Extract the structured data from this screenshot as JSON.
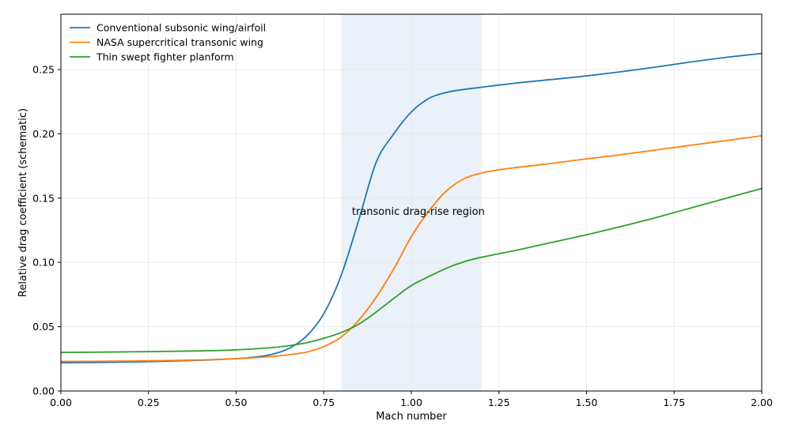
{
  "chart_data": {
    "type": "line",
    "title": "",
    "xlabel": "Mach number",
    "ylabel": "Relative drag coefficient (schematic)",
    "xlim": [
      0.0,
      2.0
    ],
    "ylim": [
      0.0,
      0.293
    ],
    "xticks": [
      0.0,
      0.25,
      0.5,
      0.75,
      1.0,
      1.25,
      1.5,
      1.75,
      2.0
    ],
    "xtick_labels": [
      "0.00",
      "0.25",
      "0.50",
      "0.75",
      "1.00",
      "1.25",
      "1.50",
      "1.75",
      "2.00"
    ],
    "yticks": [
      0.0,
      0.05,
      0.1,
      0.15,
      0.2,
      0.25
    ],
    "ytick_labels": [
      "0.00",
      "0.05",
      "0.10",
      "0.15",
      "0.20",
      "0.25"
    ],
    "grid": true,
    "legend_position": "top-left",
    "shaded_region": {
      "x_start": 0.8,
      "x_end": 1.2,
      "color": "#dce7f3"
    },
    "annotation": {
      "text": "transonic drag-rise region",
      "x": 1.02,
      "y": 0.14
    },
    "series": [
      {
        "name": "Conventional subsonic wing/airfoil",
        "color": "#1f77b4",
        "x": [
          0.0,
          0.1,
          0.2,
          0.3,
          0.4,
          0.5,
          0.55,
          0.6,
          0.65,
          0.7,
          0.75,
          0.8,
          0.85,
          0.9,
          0.95,
          1.0,
          1.05,
          1.1,
          1.15,
          1.2,
          1.3,
          1.4,
          1.5,
          1.6,
          1.7,
          1.8,
          1.9,
          2.0
        ],
        "y": [
          0.022,
          0.0222,
          0.0226,
          0.0232,
          0.024,
          0.0252,
          0.0263,
          0.0284,
          0.033,
          0.0425,
          0.06,
          0.09,
          0.133,
          0.178,
          0.2,
          0.217,
          0.2275,
          0.2322,
          0.2345,
          0.2362,
          0.2395,
          0.2422,
          0.245,
          0.2483,
          0.252,
          0.256,
          0.2595,
          0.2625
        ]
      },
      {
        "name": "NASA supercritical transonic wing",
        "color": "#ff7f0e",
        "x": [
          0.0,
          0.2,
          0.4,
          0.5,
          0.6,
          0.65,
          0.7,
          0.75,
          0.8,
          0.85,
          0.9,
          0.95,
          1.0,
          1.05,
          1.1,
          1.15,
          1.2,
          1.25,
          1.3,
          1.4,
          1.5,
          1.6,
          1.7,
          1.8,
          1.9,
          2.0
        ],
        "y": [
          0.023,
          0.0233,
          0.0242,
          0.0252,
          0.0268,
          0.0282,
          0.0302,
          0.0345,
          0.042,
          0.055,
          0.073,
          0.095,
          0.12,
          0.14,
          0.1555,
          0.165,
          0.1695,
          0.172,
          0.1738,
          0.177,
          0.1805,
          0.1838,
          0.1875,
          0.1912,
          0.1948,
          0.1985
        ]
      },
      {
        "name": "Thin swept fighter planform",
        "color": "#2ca02c",
        "x": [
          0.0,
          0.2,
          0.4,
          0.5,
          0.6,
          0.65,
          0.7,
          0.75,
          0.8,
          0.85,
          0.9,
          0.95,
          1.0,
          1.05,
          1.1,
          1.15,
          1.2,
          1.3,
          1.4,
          1.5,
          1.6,
          1.7,
          1.8,
          1.9,
          2.0
        ],
        "y": [
          0.03,
          0.0305,
          0.0312,
          0.032,
          0.0337,
          0.0352,
          0.0375,
          0.041,
          0.0455,
          0.052,
          0.0615,
          0.072,
          0.082,
          0.089,
          0.0955,
          0.1005,
          0.104,
          0.1095,
          0.1155,
          0.1215,
          0.128,
          0.135,
          0.1425,
          0.15,
          0.1575
        ]
      }
    ]
  }
}
